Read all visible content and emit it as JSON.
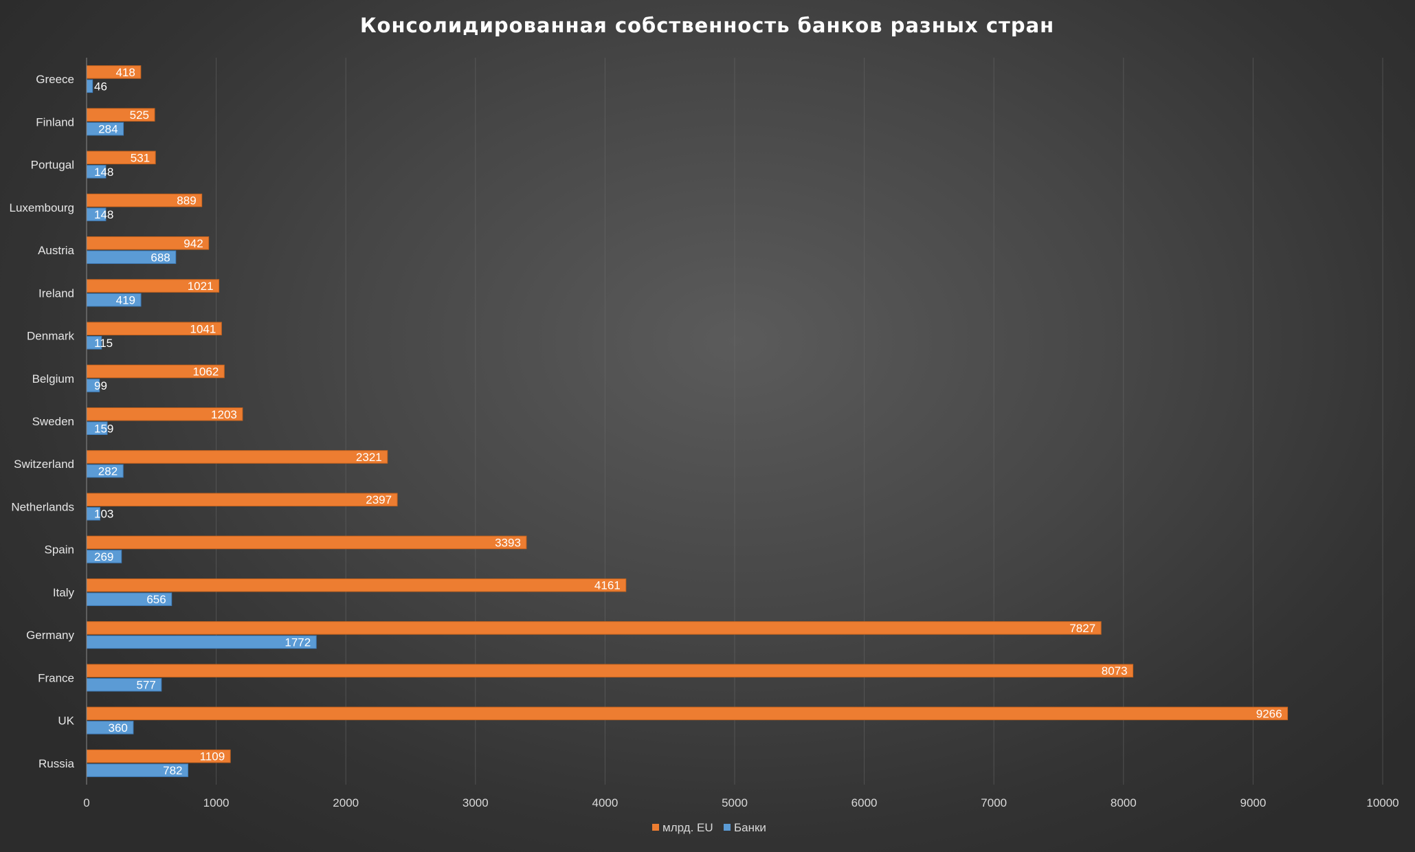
{
  "chart_data": {
    "type": "bar",
    "orientation": "horizontal",
    "title": "Консолидированная собственность банков разных стран",
    "categories": [
      "Greece",
      "Finland",
      "Portugal",
      "Luxembourg",
      "Austria",
      "Ireland",
      "Denmark",
      "Belgium",
      "Sweden",
      "Switzerland",
      "Netherlands",
      "Spain",
      "Italy",
      "Germany",
      "France",
      "UK",
      "Russia"
    ],
    "series": [
      {
        "name": "млрд. EU",
        "color": "#ed7d31",
        "values": [
          418,
          525,
          531,
          889,
          942,
          1021,
          1041,
          1062,
          1203,
          2321,
          2397,
          3393,
          4161,
          7827,
          8073,
          9266,
          1109
        ]
      },
      {
        "name": "Банки",
        "color": "#5b9bd5",
        "values": [
          46,
          284,
          148,
          148,
          688,
          419,
          115,
          99,
          159,
          282,
          103,
          269,
          656,
          1772,
          577,
          360,
          782
        ]
      }
    ],
    "xlim": [
      0,
      10000
    ],
    "xticks": [
      0,
      1000,
      2000,
      3000,
      4000,
      5000,
      6000,
      7000,
      8000,
      9000,
      10000
    ],
    "grid": true,
    "legend_position": "bottom"
  }
}
